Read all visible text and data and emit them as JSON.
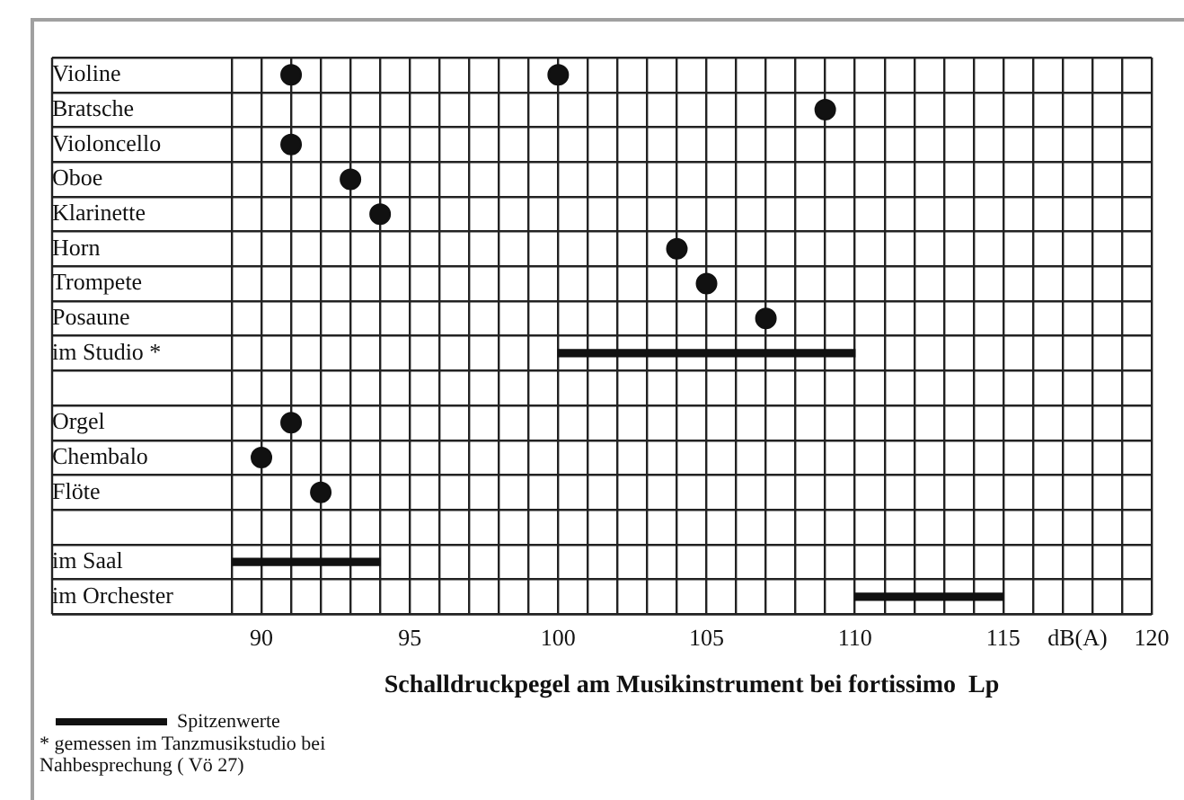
{
  "chart_data": {
    "type": "scatter",
    "orientation": "horizontal",
    "xlabel": "Schalldruckpegel am Musikinstrument bei fortissimo  Lp",
    "categories": [
      "Violine",
      "Bratsche",
      "Violoncello",
      "Oboe",
      "Klarinette",
      "Horn",
      "Trompete",
      "Posaune",
      "im Studio *",
      null,
      "Orgel",
      "Chembalo",
      "Flöte",
      null,
      "im Saal",
      "im Orchester"
    ],
    "series": [
      {
        "color": "#111111",
        "values": [
          91,
          109,
          91,
          93,
          94,
          104,
          105,
          107,
          null,
          null,
          91,
          90,
          92,
          null,
          null,
          null
        ]
      },
      {
        "color": "#111111",
        "values": [
          100,
          null,
          null,
          null,
          null,
          null,
          null,
          null,
          null,
          null,
          null,
          null,
          null,
          null,
          null,
          null
        ]
      },
      {
        "type": "bar",
        "name": "Spitzenwerte",
        "color": "#111111",
        "base": [
          null,
          null,
          null,
          null,
          null,
          null,
          null,
          null,
          100,
          null,
          null,
          null,
          null,
          null,
          89,
          110
        ],
        "values": [
          null,
          null,
          null,
          null,
          null,
          null,
          null,
          null,
          10,
          null,
          null,
          null,
          null,
          null,
          5,
          5
        ]
      }
    ],
    "xlim": [
      89,
      120
    ],
    "xticks": [
      {
        "value": 89,
        "label": null
      },
      90,
      {
        "value": 91,
        "label": null
      },
      {
        "value": 92,
        "label": null
      },
      {
        "value": 93,
        "label": null
      },
      {
        "value": 94,
        "label": null
      },
      95,
      {
        "value": 96,
        "label": null
      },
      {
        "value": 97,
        "label": null
      },
      {
        "value": 98,
        "label": null
      },
      {
        "value": 99,
        "label": null
      },
      100,
      {
        "value": 101,
        "label": null
      },
      {
        "value": 102,
        "label": null
      },
      {
        "value": 103,
        "label": null
      },
      {
        "value": 104,
        "label": null
      },
      105,
      {
        "value": 106,
        "label": null
      },
      {
        "value": 107,
        "label": null
      },
      {
        "value": 108,
        "label": null
      },
      {
        "value": 109,
        "label": null
      },
      110,
      {
        "value": 111,
        "label": null
      },
      {
        "value": 112,
        "label": null
      },
      {
        "value": 113,
        "label": null
      },
      {
        "value": 114,
        "label": null
      },
      115,
      {
        "value": 116,
        "label": null
      },
      {
        "value": 117,
        "label": null
      },
      {
        "value": 117.5,
        "label": "dB(A)"
      },
      {
        "value": 118,
        "label": null
      },
      {
        "value": 119,
        "label": null
      },
      120
    ],
    "grid": true,
    "marker": "circle",
    "legend": "bottom left",
    "annotations": [
      "* gemessen im Tanzmusikstudio bei Nahbesprechung ( Vö 27)"
    ]
  }
}
